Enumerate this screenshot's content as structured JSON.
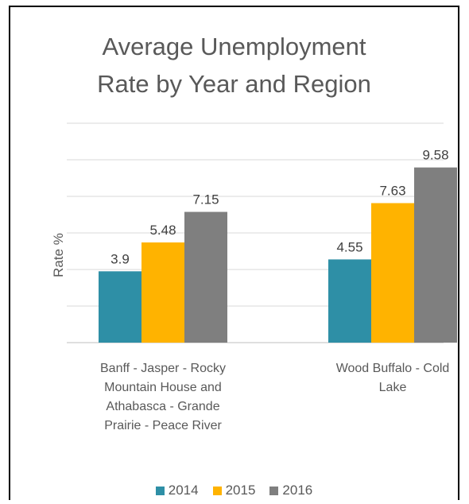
{
  "chart_data": {
    "type": "bar",
    "title_lines": [
      "Average Unemployment",
      "Rate by Year and Region"
    ],
    "ylabel": "Rate %",
    "xlabel": "",
    "ylim": [
      0,
      12
    ],
    "gridlines": true,
    "y_gridlines": [
      0,
      2,
      4,
      6,
      8,
      10,
      12
    ],
    "legend_position": "bottom",
    "categories": [
      "Banff - Jasper - Rocky Mountain House and Athabasca - Grande Prairie - Peace River",
      "Wood Buffalo - Cold Lake"
    ],
    "category_label_lines": [
      [
        "Banff - Jasper - Rocky",
        "Mountain House and",
        "Athabasca - Grande",
        "Prairie - Peace River"
      ],
      [
        "Wood Buffalo - Cold",
        "Lake"
      ]
    ],
    "series": [
      {
        "name": "2014",
        "color": "#2E8FA6",
        "values": [
          3.9,
          4.55
        ],
        "labels": [
          "3.9",
          "4.55"
        ]
      },
      {
        "name": "2015",
        "color": "#FFB300",
        "values": [
          5.48,
          7.63
        ],
        "labels": [
          "5.48",
          "7.63"
        ]
      },
      {
        "name": "2016",
        "color": "#7F7F7F",
        "values": [
          7.15,
          9.58
        ],
        "labels": [
          "7.15",
          "9.58"
        ]
      }
    ]
  }
}
